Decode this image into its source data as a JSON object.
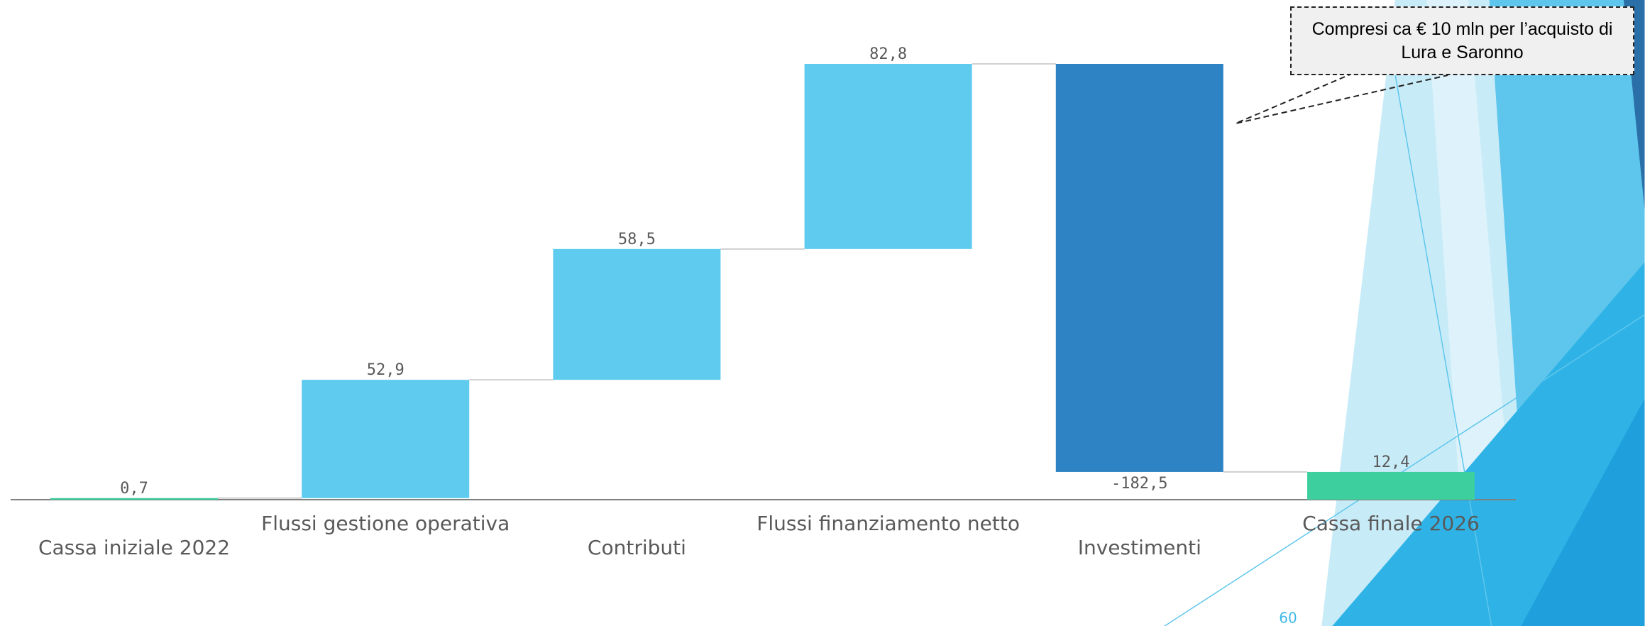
{
  "chart_data": {
    "type": "waterfall",
    "categories": [
      "Cassa iniziale 2022",
      "Flussi gestione operativa",
      "Contributi",
      "Flussi finanziamento netto",
      "Investimenti",
      "Cassa finale 2026"
    ],
    "values": [
      0.7,
      52.9,
      58.5,
      82.8,
      -182.5,
      12.4
    ],
    "value_labels": [
      "0,7",
      "52,9",
      "58,5",
      "82,8",
      "-182,5",
      "12,4"
    ],
    "colors": [
      "#3ecf9e",
      "#5ecbef",
      "#5ecbef",
      "#5ecbef",
      "#2e83c4",
      "#3ecf9e"
    ],
    "annotation": "Compresi ca € 10 mln per l’acquisto di Lura e Saronno"
  },
  "page_number": "60"
}
